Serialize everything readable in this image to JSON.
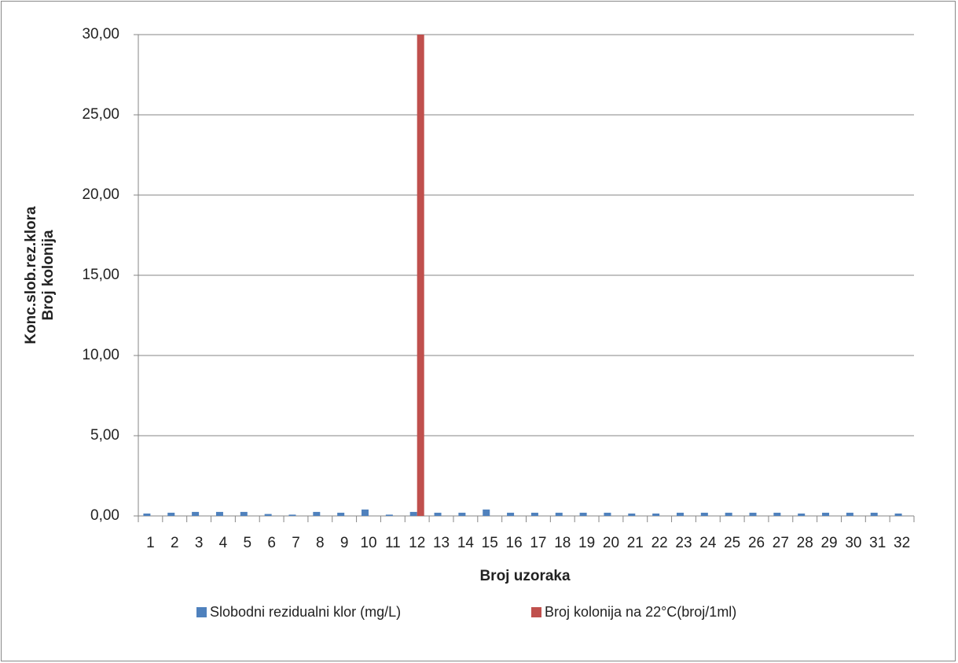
{
  "chart_data": {
    "type": "bar",
    "x_label": "Broj uzoraka",
    "y_label": [
      "Konc.slob.rez.klora",
      "Broj kolonija"
    ],
    "categories": [
      "1",
      "2",
      "3",
      "4",
      "5",
      "6",
      "7",
      "8",
      "9",
      "10",
      "11",
      "12",
      "13",
      "14",
      "15",
      "16",
      "17",
      "18",
      "19",
      "20",
      "21",
      "22",
      "23",
      "24",
      "25",
      "26",
      "27",
      "28",
      "29",
      "30",
      "31",
      "32"
    ],
    "series": [
      {
        "name": "Slobodni rezidualni klor (mg/L)",
        "color": "#4f81bd",
        "values": [
          0.15,
          0.2,
          0.25,
          0.25,
          0.25,
          0.12,
          0.08,
          0.25,
          0.2,
          0.4,
          0.08,
          0.25,
          0.2,
          0.2,
          0.4,
          0.2,
          0.2,
          0.2,
          0.2,
          0.2,
          0.15,
          0.15,
          0.2,
          0.2,
          0.2,
          0.2,
          0.2,
          0.15,
          0.2,
          0.2,
          0.2,
          0.15
        ]
      },
      {
        "name": "Broj kolonija na 22°C(broj/1ml)",
        "color": "#c0504d",
        "values": [
          0,
          0,
          0,
          0,
          0,
          0,
          0,
          0,
          0,
          0,
          0,
          30,
          0,
          0,
          0,
          0,
          0,
          0,
          0,
          0,
          0,
          0,
          0,
          0,
          0,
          0,
          0,
          0,
          0,
          0,
          0,
          0
        ]
      }
    ],
    "ylim": [
      0,
      30
    ],
    "yticks": [
      {
        "value": 0,
        "label": "0,00"
      },
      {
        "value": 5,
        "label": "5,00"
      },
      {
        "value": 10,
        "label": "10,00"
      },
      {
        "value": 15,
        "label": "15,00"
      },
      {
        "value": 20,
        "label": "20,00"
      },
      {
        "value": 25,
        "label": "25,00"
      },
      {
        "value": 30,
        "label": "30,00"
      }
    ],
    "grid": true,
    "legend": "bottom"
  }
}
